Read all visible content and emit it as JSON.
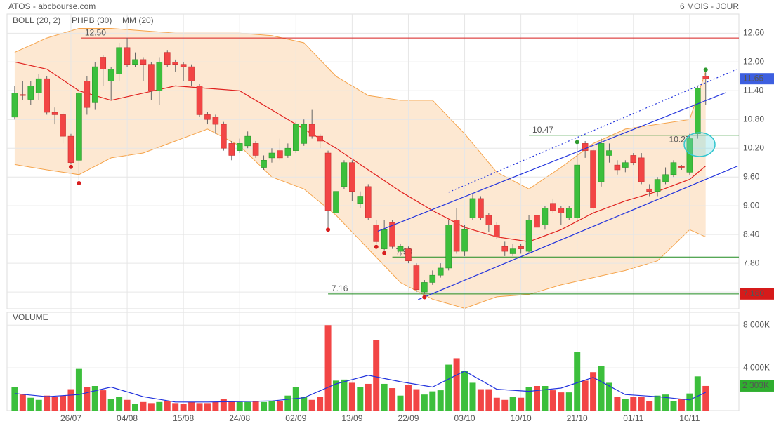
{
  "chart_data": [
    {
      "type": "candlestick",
      "title": "ATOS - abcbourse.com",
      "subtitle": "6 MOIS - JOUR",
      "categories": [
        null,
        null,
        null,
        null,
        null,
        null,
        null,
        "26/07",
        null,
        null,
        null,
        null,
        null,
        null,
        "04/08",
        null,
        null,
        null,
        null,
        null,
        null,
        "15/08",
        null,
        null,
        null,
        null,
        null,
        null,
        "24/08",
        null,
        null,
        null,
        null,
        null,
        null,
        "02/09",
        null,
        null,
        null,
        null,
        null,
        null,
        "13/09",
        null,
        null,
        null,
        null,
        null,
        null,
        "22/09",
        null,
        null,
        null,
        null,
        null,
        null,
        "03/10",
        null,
        null,
        null,
        null,
        null,
        null,
        "10/10",
        null,
        null,
        null,
        null,
        null,
        null,
        "21/10",
        null,
        null,
        null,
        null,
        null,
        null,
        "01/11",
        null,
        null,
        null,
        null,
        null,
        null,
        "10/11",
        null,
        null
      ],
      "ohlc": {
        "open": [
          10.85,
          11.32,
          11.22,
          11.35,
          11.65,
          10.95,
          10.9,
          10.45,
          9.95,
          11.6,
          11.15,
          12.1,
          11.6,
          11.75,
          12.3,
          11.95,
          12.05,
          11.95,
          11.4,
          12.2,
          12.0,
          11.95,
          11.9,
          11.5,
          10.9,
          10.85,
          10.7,
          10.3,
          10.15,
          10.25,
          10.3,
          9.8,
          10.0,
          10.15,
          10.05,
          10.15,
          10.3,
          10.7,
          10.45,
          10.1,
          8.85,
          9.4,
          9.9,
          9.05,
          9.4,
          8.6,
          8.1,
          8.65,
          8.05,
          8.1,
          7.75,
          7.2,
          7.4,
          7.55,
          7.7,
          8.7,
          8.05,
          8.75,
          9.15,
          8.8,
          8.6,
          8.15,
          8.0,
          8.15,
          8.05,
          8.8,
          8.6,
          9.05,
          8.95,
          8.75,
          8.75,
          10.3,
          10.15,
          9.5,
          10.05,
          9.85,
          9.8,
          10.05,
          10.0,
          9.35,
          9.3,
          9.5,
          9.65,
          9.82,
          9.7,
          10.5,
          11.7
        ],
        "high": [
          11.5,
          11.6,
          11.6,
          11.75,
          11.7,
          11.05,
          10.95,
          10.5,
          11.45,
          11.7,
          12.0,
          12.15,
          11.9,
          12.4,
          12.5,
          12.2,
          12.1,
          12.0,
          12.1,
          12.25,
          12.05,
          12.0,
          11.95,
          11.55,
          10.95,
          10.9,
          10.75,
          10.35,
          10.4,
          10.55,
          10.35,
          10.05,
          10.2,
          10.4,
          10.3,
          10.75,
          10.8,
          11.0,
          10.5,
          10.15,
          9.45,
          9.95,
          9.95,
          9.3,
          9.45,
          8.7,
          8.7,
          8.7,
          8.2,
          8.15,
          7.8,
          7.45,
          7.65,
          7.8,
          8.7,
          8.95,
          8.6,
          9.25,
          9.2,
          8.85,
          8.65,
          8.25,
          8.2,
          8.2,
          8.8,
          8.85,
          9.0,
          9.15,
          9.0,
          9.0,
          10.27,
          10.35,
          10.2,
          10.4,
          10.3,
          9.95,
          9.95,
          10.1,
          10.1,
          9.45,
          9.6,
          9.8,
          9.95,
          9.85,
          10.5,
          11.5,
          11.78
        ],
        "low": [
          10.8,
          11.2,
          11.1,
          11.2,
          10.9,
          10.7,
          10.3,
          9.87,
          9.53,
          10.9,
          11.0,
          11.5,
          11.2,
          11.6,
          11.9,
          11.9,
          11.6,
          11.2,
          11.1,
          11.9,
          11.8,
          11.6,
          11.5,
          10.85,
          10.7,
          10.5,
          10.15,
          9.95,
          10.1,
          10.2,
          10.0,
          9.75,
          9.9,
          9.95,
          10.0,
          10.1,
          10.25,
          10.4,
          10.2,
          8.56,
          8.85,
          9.35,
          9.1,
          8.95,
          8.7,
          8.2,
          8.07,
          8.1,
          7.95,
          7.8,
          7.2,
          7.15,
          7.35,
          7.5,
          7.65,
          8.0,
          7.95,
          8.7,
          8.7,
          8.45,
          8.3,
          7.95,
          7.95,
          8.0,
          8.0,
          8.45,
          8.5,
          8.85,
          8.6,
          8.7,
          8.7,
          10.0,
          8.8,
          9.4,
          9.9,
          9.65,
          9.7,
          9.85,
          9.45,
          9.2,
          9.2,
          9.45,
          9.6,
          9.75,
          9.65,
          10.4,
          11.1
        ],
        "close": [
          11.35,
          11.3,
          11.5,
          11.65,
          10.95,
          10.9,
          10.45,
          9.9,
          11.35,
          11.05,
          11.9,
          11.85,
          11.85,
          12.3,
          11.95,
          12.05,
          11.95,
          11.4,
          12.0,
          11.95,
          11.95,
          11.9,
          11.6,
          10.9,
          10.8,
          10.7,
          10.2,
          10.05,
          10.3,
          10.45,
          10.05,
          9.95,
          10.1,
          10.0,
          10.2,
          10.7,
          10.7,
          10.45,
          10.35,
          8.9,
          9.3,
          9.9,
          9.3,
          9.2,
          8.75,
          8.25,
          8.5,
          8.15,
          8.15,
          7.85,
          7.25,
          7.4,
          7.55,
          7.7,
          8.6,
          8.05,
          8.5,
          9.15,
          8.75,
          8.6,
          8.35,
          8.05,
          8.1,
          8.1,
          8.7,
          8.55,
          8.95,
          8.9,
          8.85,
          8.95,
          9.85,
          10.15,
          8.95,
          10.3,
          10.15,
          9.75,
          9.9,
          9.9,
          9.5,
          9.3,
          9.55,
          9.65,
          9.9,
          9.8,
          10.4,
          11.45,
          11.65
        ]
      },
      "up_color": "#3cbf3c",
      "down_color": "#f24545",
      "last_color": "#3d5fe0",
      "ylim": [
        6.85,
        13.0
      ],
      "yticks": [
        {
          "value": 7.2,
          "label": "7.20"
        },
        {
          "value": 7.8,
          "label": "7.80"
        },
        {
          "value": 8.4,
          "label": "8.40"
        },
        {
          "value": 9.0,
          "label": "9.00"
        },
        {
          "value": 9.6,
          "label": "9.60"
        },
        {
          "value": 10.2,
          "label": "10.20"
        },
        {
          "value": 10.8,
          "label": "10.80"
        },
        {
          "value": 11.4,
          "label": "11.40"
        },
        {
          "value": 12.0,
          "label": "12.00"
        },
        {
          "value": 12.6,
          "label": "12.60"
        }
      ],
      "grid": true,
      "bollinger": {
        "name": "BOLL (20, 2)",
        "color": "#f5a34a",
        "fill": "#fde8d2",
        "x": [
          0,
          4,
          8,
          12,
          16,
          20,
          24,
          28,
          32,
          36,
          40,
          44,
          48,
          52,
          56,
          60,
          64,
          68,
          72,
          76,
          80,
          84,
          86
        ],
        "upper": [
          12.2,
          12.5,
          12.7,
          12.7,
          12.65,
          12.6,
          12.6,
          12.6,
          12.55,
          12.4,
          11.7,
          11.3,
          11.2,
          11.2,
          10.5,
          9.7,
          9.35,
          9.8,
          10.3,
          10.6,
          10.7,
          10.8,
          11.8
        ],
        "lower": [
          9.86,
          9.75,
          9.65,
          10.0,
          10.1,
          10.35,
          10.6,
          10.25,
          9.6,
          9.35,
          8.8,
          8.1,
          7.4,
          7.05,
          6.86,
          7.1,
          7.15,
          7.35,
          7.5,
          7.65,
          7.85,
          8.5,
          8.35
        ]
      },
      "phpb": {
        "name": "PHPB (30)",
        "color": "#2e9a2e",
        "high_color": "#2e9a2e",
        "low_color": "#d81e1e",
        "highs_x": [
          70,
          86
        ],
        "highs": [
          10.27,
          11.78
        ],
        "lows_x": [
          7,
          8,
          39,
          45,
          46,
          51
        ],
        "lows": [
          9.87,
          9.53,
          8.56,
          8.2,
          8.07,
          7.15
        ]
      },
      "mm": {
        "name": "MM (20)",
        "color": "#e0201e",
        "x": [
          0,
          4,
          8,
          12,
          16,
          20,
          24,
          28,
          32,
          36,
          40,
          44,
          48,
          52,
          56,
          60,
          64,
          68,
          72,
          76,
          80,
          84,
          86
        ],
        "values": [
          12.0,
          11.85,
          11.4,
          11.2,
          11.35,
          11.5,
          11.45,
          11.4,
          11.0,
          10.6,
          10.2,
          9.75,
          9.3,
          8.9,
          8.55,
          8.35,
          8.25,
          8.5,
          8.85,
          9.1,
          9.3,
          9.55,
          9.83
        ]
      },
      "levels": [
        {
          "value": 12.5,
          "label": "12.50",
          "color": "#d81e1e",
          "start": 8.3
        },
        {
          "value": 10.47,
          "label": "10.47",
          "color": "#1f8a1f",
          "start": 64
        },
        {
          "value": 10.27,
          "label": "10.27",
          "color": "#33c6cf",
          "start": 81
        },
        {
          "value": 7.93,
          "label": "7.93",
          "color": "#1f8a1f",
          "start": 47
        },
        {
          "value": 7.16,
          "label": "7.16",
          "color": "#1f8a1f",
          "start": 39
        }
      ],
      "trendlines": [
        {
          "x": [
            45.2,
            88.5
          ],
          "values": [
            8.47,
            11.36
          ],
          "color": "#2233dd",
          "dashed": false
        },
        {
          "x": [
            50.2,
            90
          ],
          "values": [
            7.04,
            9.83
          ],
          "color": "#2233dd",
          "dashed": false
        },
        {
          "x": [
            54,
            89.8
          ],
          "values": [
            9.28,
            11.84
          ],
          "color": "#2233dd",
          "dashed": true
        }
      ],
      "tags": [
        {
          "value": 7.16,
          "label": "7.160",
          "color": "#d61a1a"
        }
      ]
    },
    {
      "type": "bar",
      "title": "VOLUME",
      "title_color": "#3cbf3c",
      "values": [
        2200,
        1500,
        1200,
        1000,
        1400,
        1300,
        1400,
        2000,
        3900,
        2200,
        2300,
        1900,
        1100,
        1300,
        1000,
        600,
        800,
        700,
        800,
        900,
        700,
        600,
        800,
        700,
        700,
        800,
        1100,
        900,
        800,
        800,
        900,
        800,
        900,
        900,
        1400,
        2200,
        1300,
        1000,
        1300,
        8000,
        2800,
        2900,
        2600,
        2200,
        2500,
        6600,
        2500,
        2100,
        1400,
        2400,
        2000,
        1500,
        1800,
        1900,
        4300,
        4900,
        3700,
        2600,
        2000,
        2000,
        1200,
        1000,
        1300,
        1200,
        2200,
        2300,
        2300,
        1900,
        1700,
        1700,
        5500,
        2800,
        3600,
        4200,
        2600,
        1300,
        1100,
        1300,
        1300,
        900,
        1400,
        1500,
        900,
        1100,
        1600,
        3200,
        2303
      ],
      "ylim": [
        0,
        9200
      ],
      "yticks": [
        {
          "value": 4000,
          "label": "4 000K"
        },
        {
          "value": 8000,
          "label": "8 000K"
        }
      ],
      "average": {
        "color": "#2233dd",
        "x": [
          0,
          4,
          8,
          12,
          16,
          20,
          24,
          28,
          32,
          36,
          40,
          44,
          48,
          52,
          56,
          60,
          64,
          68,
          72,
          76,
          80,
          84,
          86
        ],
        "values": [
          1600,
          1300,
          1500,
          2200,
          1300,
          800,
          800,
          850,
          900,
          1200,
          2500,
          3300,
          2700,
          2200,
          3700,
          2000,
          1800,
          2100,
          3100,
          1500,
          1300,
          1000,
          1700
        ]
      },
      "tags": [
        {
          "value": 2303,
          "label": "2 303K",
          "color": "#2fae2f"
        }
      ]
    }
  ]
}
